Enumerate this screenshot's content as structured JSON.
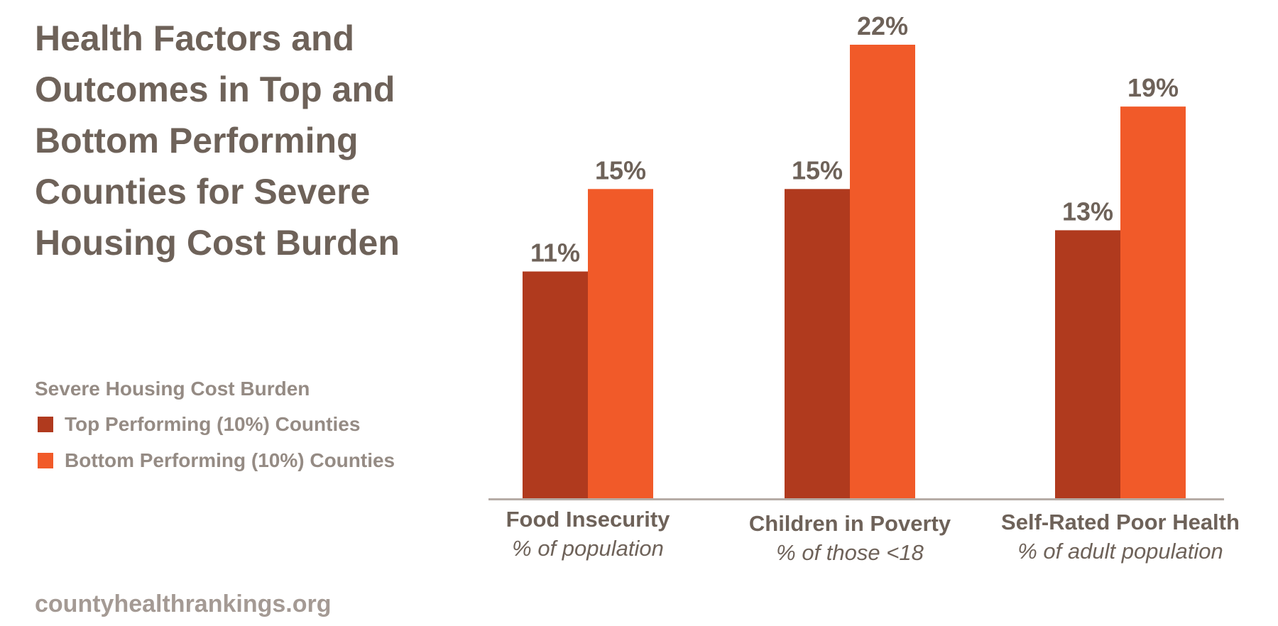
{
  "title_lines": [
    "Health Factors and",
    "Outcomes in Top and",
    "Bottom Performing",
    "Counties for Severe",
    "Housing Cost Burden"
  ],
  "legend": {
    "title": "Severe Housing Cost Burden",
    "items": [
      {
        "label": "Top Performing (10%) Counties",
        "color": "#b03a1e"
      },
      {
        "label": "Bottom Performing (10%) Counties",
        "color": "#f15a29"
      }
    ]
  },
  "source": "countyhealthrankings.org",
  "colors": {
    "axis": "#b6aca6",
    "text_dark": "#6e6259",
    "text_light": "#958b84"
  },
  "chart_data": {
    "type": "bar",
    "title": "Health Factors and Outcomes in Top and Bottom Performing Counties for Severe Housing Cost Burden",
    "categories": [
      "Food Insecurity",
      "Children in Poverty",
      "Self-Rated Poor Health"
    ],
    "category_subtitles": [
      "% of population",
      "% of those <18",
      "% of adult population"
    ],
    "series": [
      {
        "name": "Top Performing (10%) Counties",
        "color": "#b03a1e",
        "values": [
          11,
          15,
          13
        ],
        "labels": [
          "11%",
          "15%",
          "13%"
        ]
      },
      {
        "name": "Bottom Performing (10%) Counties",
        "color": "#f15a29",
        "values": [
          15,
          22,
          19
        ],
        "labels": [
          "15%",
          "22%",
          "19%"
        ]
      }
    ],
    "ylim": [
      0,
      22
    ],
    "grid": false,
    "legend_position": "left",
    "xlabel": "",
    "ylabel": ""
  }
}
